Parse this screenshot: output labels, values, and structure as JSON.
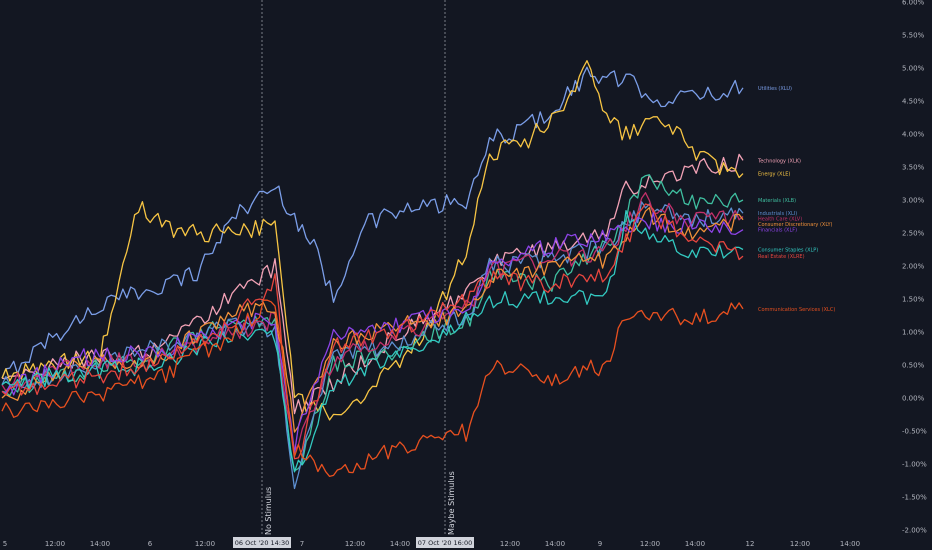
{
  "chart_data": {
    "type": "line",
    "ylim": [
      -2.0,
      6.0
    ],
    "y_ticks": [
      "6.00%",
      "5.50%",
      "5.00%",
      "4.50%",
      "4.00%",
      "3.50%",
      "3.00%",
      "2.50%",
      "2.00%",
      "1.50%",
      "1.00%",
      "0.50%",
      "0.00%",
      "-0.50%",
      "-1.00%",
      "-1.50%",
      "-2.00%"
    ],
    "x_ticks": [
      "5",
      "12:00",
      "14:00",
      "6",
      "12:00",
      "06 Oct '20  14:30",
      "7",
      "12:00",
      "14:00",
      "07 Oct '20  16:00",
      "12:00",
      "14:00",
      "9",
      "12:00",
      "14:00",
      "12",
      "12:00",
      "14:00"
    ],
    "highlighted_x_ticks": [
      "06 Oct '20  14:30",
      "07 Oct '20  16:00"
    ],
    "events": [
      {
        "label": "No Stimulus"
      },
      {
        "label": "Maybe Stimulus"
      }
    ],
    "series": [
      {
        "name": "Utilities (XLU)",
        "color": "#7b9ee8",
        "key": [
          [
            0,
            0.3
          ],
          [
            10,
            0.8
          ],
          [
            25,
            1.4
          ],
          [
            40,
            1.7
          ],
          [
            50,
            1.9
          ],
          [
            60,
            2.8
          ],
          [
            70,
            3.2
          ],
          [
            80,
            2.3
          ],
          [
            85,
            1.5
          ],
          [
            92,
            2.6
          ],
          [
            100,
            2.8
          ],
          [
            110,
            2.9
          ],
          [
            120,
            3.0
          ],
          [
            125,
            3.9
          ],
          [
            130,
            4.0
          ],
          [
            140,
            4.3
          ],
          [
            150,
            4.9
          ],
          [
            160,
            4.8
          ],
          [
            170,
            4.5
          ],
          [
            180,
            4.6
          ],
          [
            190,
            4.7
          ]
        ]
      },
      {
        "name": "Technology (XLK)",
        "color": "#f2a2b6",
        "key": [
          [
            0,
            0.3
          ],
          [
            20,
            0.6
          ],
          [
            40,
            0.7
          ],
          [
            60,
            1.6
          ],
          [
            70,
            2.0
          ],
          [
            75,
            -0.2
          ],
          [
            85,
            0.2
          ],
          [
            100,
            0.9
          ],
          [
            120,
            1.6
          ],
          [
            125,
            2.0
          ],
          [
            140,
            2.3
          ],
          [
            155,
            2.5
          ],
          [
            160,
            3.2
          ],
          [
            170,
            3.3
          ],
          [
            180,
            3.5
          ],
          [
            190,
            3.6
          ]
        ]
      },
      {
        "name": "Energy (XLE)",
        "color": "#f7c544",
        "key": [
          [
            0,
            0.3
          ],
          [
            10,
            0.5
          ],
          [
            25,
            0.6
          ],
          [
            35,
            2.9
          ],
          [
            45,
            2.5
          ],
          [
            60,
            2.5
          ],
          [
            70,
            2.6
          ],
          [
            75,
            0.0
          ],
          [
            85,
            -0.3
          ],
          [
            95,
            0.2
          ],
          [
            105,
            0.7
          ],
          [
            115,
            1.7
          ],
          [
            120,
            2.4
          ],
          [
            125,
            3.7
          ],
          [
            135,
            3.9
          ],
          [
            145,
            4.5
          ],
          [
            150,
            5.2
          ],
          [
            155,
            4.2
          ],
          [
            160,
            4.0
          ],
          [
            170,
            4.2
          ],
          [
            180,
            3.6
          ],
          [
            190,
            3.4
          ]
        ]
      },
      {
        "name": "Materials (XLB)",
        "color": "#3fbfa0",
        "key": [
          [
            0,
            0.1
          ],
          [
            20,
            0.4
          ],
          [
            40,
            0.7
          ],
          [
            60,
            1.2
          ],
          [
            70,
            1.1
          ],
          [
            75,
            -1.2
          ],
          [
            85,
            0.5
          ],
          [
            100,
            0.7
          ],
          [
            120,
            1.2
          ],
          [
            125,
            1.9
          ],
          [
            140,
            1.7
          ],
          [
            155,
            2.3
          ],
          [
            165,
            3.3
          ],
          [
            175,
            3.0
          ],
          [
            190,
            3.0
          ]
        ]
      },
      {
        "name": "Industrials (XLI)",
        "color": "#5d8fd1",
        "key": [
          [
            0,
            0.2
          ],
          [
            20,
            0.4
          ],
          [
            40,
            0.8
          ],
          [
            60,
            1.1
          ],
          [
            70,
            1.0
          ],
          [
            75,
            -1.3
          ],
          [
            85,
            0.7
          ],
          [
            100,
            0.8
          ],
          [
            120,
            1.3
          ],
          [
            125,
            2.0
          ],
          [
            140,
            2.1
          ],
          [
            155,
            2.3
          ],
          [
            165,
            2.9
          ],
          [
            175,
            2.7
          ],
          [
            190,
            2.8
          ]
        ]
      },
      {
        "name": "Health Care (XLV)",
        "color": "#c2306a",
        "key": [
          [
            0,
            0.2
          ],
          [
            20,
            0.5
          ],
          [
            40,
            0.6
          ],
          [
            60,
            1.0
          ],
          [
            70,
            1.2
          ],
          [
            75,
            -0.9
          ],
          [
            85,
            0.6
          ],
          [
            100,
            0.9
          ],
          [
            120,
            1.4
          ],
          [
            125,
            1.9
          ],
          [
            140,
            2.1
          ],
          [
            155,
            2.2
          ],
          [
            165,
            3.0
          ],
          [
            175,
            2.7
          ],
          [
            190,
            2.75
          ]
        ]
      },
      {
        "name": "Consumer Discretionary (XLY)",
        "color": "#f0913a",
        "key": [
          [
            0,
            0.0
          ],
          [
            20,
            0.5
          ],
          [
            40,
            0.6
          ],
          [
            60,
            1.3
          ],
          [
            70,
            1.4
          ],
          [
            75,
            -0.5
          ],
          [
            85,
            0.8
          ],
          [
            100,
            1.1
          ],
          [
            120,
            1.3
          ],
          [
            125,
            1.8
          ],
          [
            140,
            2.0
          ],
          [
            155,
            2.1
          ],
          [
            165,
            2.8
          ],
          [
            175,
            2.5
          ],
          [
            190,
            2.7
          ]
        ]
      },
      {
        "name": "Financials (XLF)",
        "color": "#8e44e8",
        "key": [
          [
            0,
            0.1
          ],
          [
            20,
            0.6
          ],
          [
            40,
            0.7
          ],
          [
            60,
            1.1
          ],
          [
            70,
            1.2
          ],
          [
            75,
            -0.7
          ],
          [
            85,
            0.9
          ],
          [
            100,
            1.1
          ],
          [
            120,
            1.4
          ],
          [
            125,
            2.0
          ],
          [
            140,
            2.3
          ],
          [
            155,
            2.5
          ],
          [
            165,
            2.7
          ],
          [
            175,
            2.6
          ],
          [
            190,
            2.55
          ]
        ]
      },
      {
        "name": "Consumer Staples (XLP)",
        "color": "#33c9c1",
        "key": [
          [
            0,
            0.2
          ],
          [
            20,
            0.4
          ],
          [
            40,
            0.5
          ],
          [
            60,
            1.0
          ],
          [
            70,
            0.9
          ],
          [
            75,
            -1.2
          ],
          [
            85,
            0.2
          ],
          [
            100,
            0.6
          ],
          [
            120,
            1.2
          ],
          [
            125,
            1.5
          ],
          [
            140,
            1.5
          ],
          [
            155,
            1.5
          ],
          [
            160,
            2.7
          ],
          [
            175,
            2.2
          ],
          [
            190,
            2.25
          ]
        ]
      },
      {
        "name": "Real Estate (XLRE)",
        "color": "#e8463f",
        "key": [
          [
            0,
            0.1
          ],
          [
            20,
            0.3
          ],
          [
            40,
            0.5
          ],
          [
            60,
            1.2
          ],
          [
            70,
            1.8
          ],
          [
            75,
            -1.0
          ],
          [
            85,
            0.8
          ],
          [
            100,
            1.0
          ],
          [
            120,
            1.5
          ],
          [
            125,
            1.8
          ],
          [
            140,
            1.7
          ],
          [
            155,
            1.9
          ],
          [
            165,
            2.9
          ],
          [
            175,
            2.4
          ],
          [
            190,
            2.15
          ]
        ]
      },
      {
        "name": "Communication Services (XLC)",
        "color": "#e8501f",
        "key": [
          [
            0,
            -0.2
          ],
          [
            20,
            0.0
          ],
          [
            40,
            0.3
          ],
          [
            60,
            1.0
          ],
          [
            70,
            1.5
          ],
          [
            75,
            -0.8
          ],
          [
            85,
            -1.2
          ],
          [
            100,
            -0.8
          ],
          [
            120,
            -0.5
          ],
          [
            125,
            0.5
          ],
          [
            140,
            0.3
          ],
          [
            155,
            0.5
          ],
          [
            160,
            1.3
          ],
          [
            175,
            1.2
          ],
          [
            190,
            1.35
          ]
        ]
      }
    ]
  }
}
